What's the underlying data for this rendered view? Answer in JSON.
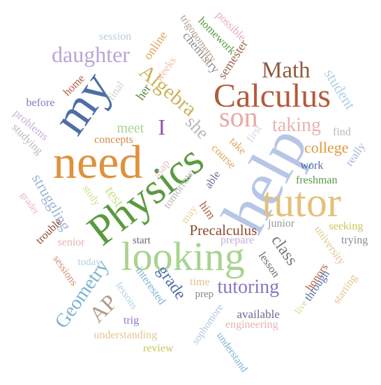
{
  "words": [
    {
      "text": "help",
      "color": "#b7c6e6"
    },
    {
      "text": "need",
      "color": "#e0913c"
    },
    {
      "text": "my",
      "color": "#4e6ea6"
    },
    {
      "text": "looking",
      "color": "#a7d48f"
    },
    {
      "text": "Physics",
      "color": "#5a9a40"
    },
    {
      "text": "tutor",
      "color": "#e5c07a"
    },
    {
      "text": "Calculus",
      "color": "#b35a3c"
    },
    {
      "text": "son",
      "color": "#e7aaa6"
    },
    {
      "text": "daughter",
      "color": "#b6a6d6"
    },
    {
      "text": "Math",
      "color": "#8e5a3e"
    },
    {
      "text": "taking",
      "color": "#e8b4b0"
    },
    {
      "text": "Algebra",
      "color": "#c8b35a"
    },
    {
      "text": "tutoring",
      "color": "#8a74c4"
    },
    {
      "text": "Geometry",
      "color": "#7ab3cf"
    },
    {
      "text": "college",
      "color": "#e09a3e"
    },
    {
      "text": "she",
      "color": "#b8b8b8"
    },
    {
      "text": "student",
      "color": "#b2d0e4"
    },
    {
      "text": "Precalculus",
      "color": "#8e4a2e"
    },
    {
      "text": "class",
      "color": "#777777"
    },
    {
      "text": "grade",
      "color": "#4e6ea6"
    },
    {
      "text": "struggling",
      "color": "#9fb4d6"
    },
    {
      "text": "AP",
      "color": "#b49a88"
    },
    {
      "text": "I",
      "color": "#8a5aa6"
    },
    {
      "text": "meet",
      "color": "#a7d48f"
    },
    {
      "text": "test",
      "color": "#cfe08a"
    },
    {
      "text": "concepts",
      "color": "#d58a4a"
    },
    {
      "text": "semester",
      "color": "#9a6a52"
    },
    {
      "text": "chemistry",
      "color": "#8a8a8a"
    },
    {
      "text": "homework",
      "color": "#5a9a40"
    },
    {
      "text": "trigonometry",
      "color": "#b49a88"
    },
    {
      "text": "possible",
      "color": "#e8a4c4"
    },
    {
      "text": "session",
      "color": "#b2d0e4"
    },
    {
      "text": "online",
      "color": "#e0a45a"
    },
    {
      "text": "weeks",
      "color": "#f0c0a0"
    },
    {
      "text": "her",
      "color": "#5a8a3a"
    },
    {
      "text": "home",
      "color": "#b35a3c"
    },
    {
      "text": "final",
      "color": "#cfcfcf"
    },
    {
      "text": "before",
      "color": "#8a74c4"
    },
    {
      "text": "problems",
      "color": "#c4b0d8"
    },
    {
      "text": "studying",
      "color": "#b8b8b8"
    },
    {
      "text": "tomorrow",
      "color": "#b8b8b8"
    },
    {
      "text": "able",
      "color": "#6a6a9a"
    },
    {
      "text": "asap",
      "color": "#e8c0c8"
    },
    {
      "text": "take",
      "color": "#e0a45a"
    },
    {
      "text": "course",
      "color": "#e0a45a"
    },
    {
      "text": "first",
      "color": "#cfd8e8"
    },
    {
      "text": "find",
      "color": "#b8b8b8"
    },
    {
      "text": "really",
      "color": "#9fb4d6"
    },
    {
      "text": "work",
      "color": "#4e6ea6"
    },
    {
      "text": "freshman",
      "color": "#5a9a40"
    },
    {
      "text": "junior",
      "color": "#9a9a9a"
    },
    {
      "text": "seeking",
      "color": "#c8c85a"
    },
    {
      "text": "trying",
      "color": "#8a8a8a"
    },
    {
      "text": "university",
      "color": "#e0c890"
    },
    {
      "text": "lesson",
      "color": "#6a6a6a"
    },
    {
      "text": "prepare",
      "color": "#c4b0d8"
    },
    {
      "text": "study",
      "color": "#cfe08a"
    },
    {
      "text": "grader",
      "color": "#e8b4c4"
    },
    {
      "text": "may",
      "color": "#e0d89a"
    },
    {
      "text": "him",
      "color": "#b35a3c"
    },
    {
      "text": "trouble",
      "color": "#8e4a2e"
    },
    {
      "text": "senior",
      "color": "#e8b4b0"
    },
    {
      "text": "start",
      "color": "#6a6a6a"
    },
    {
      "text": "today",
      "color": "#b2d0e4"
    },
    {
      "text": "sessions",
      "color": "#d58a6a"
    },
    {
      "text": "lessons",
      "color": "#b2d0e4"
    },
    {
      "text": "interested",
      "color": "#7ab3cf"
    },
    {
      "text": "time",
      "color": "#e8c090"
    },
    {
      "text": "prep",
      "color": "#8a8a8a"
    },
    {
      "text": "honors",
      "color": "#b35a3c"
    },
    {
      "text": "through",
      "color": "#4e6ea6"
    },
    {
      "text": "starting",
      "color": "#e0c890"
    },
    {
      "text": "trig",
      "color": "#8a74c4"
    },
    {
      "text": "available",
      "color": "#6a6a9a"
    },
    {
      "text": "engineering",
      "color": "#e8b4b0"
    },
    {
      "text": "live",
      "color": "#cfe08a"
    },
    {
      "text": "understanding",
      "color": "#e0c890"
    },
    {
      "text": "sophomore",
      "color": "#b2c4e4"
    },
    {
      "text": "review",
      "color": "#c8c85a"
    },
    {
      "text": "understand",
      "color": "#7ab3cf"
    }
  ]
}
